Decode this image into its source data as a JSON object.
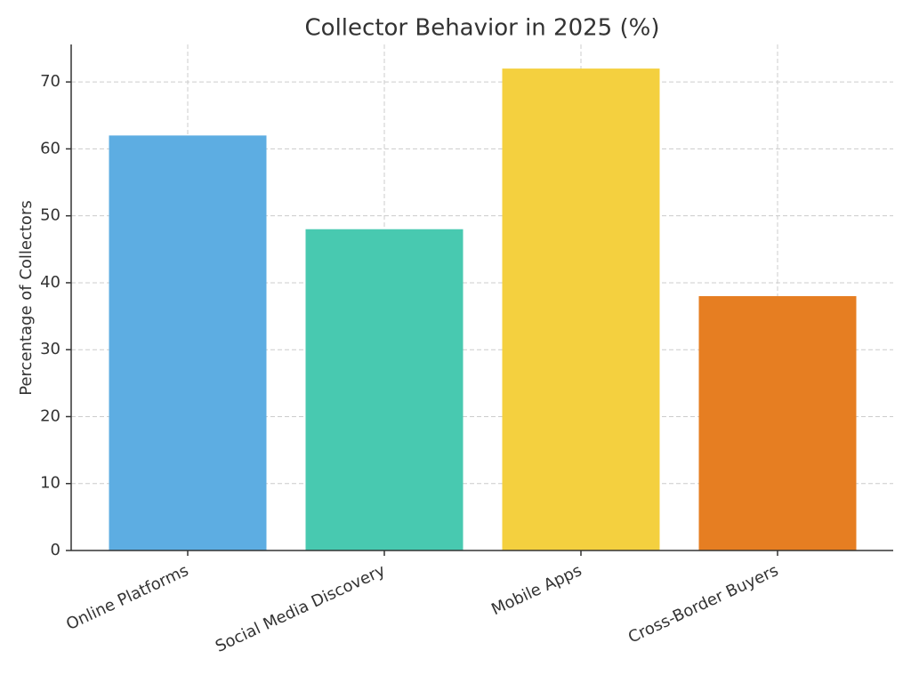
{
  "chart_data": {
    "type": "bar",
    "title": "Collector Behavior in 2025 (%)",
    "y_label": "Percentage of Collectors",
    "categories": [
      "Online Platforms",
      "Social Media Discovery",
      "Mobile Apps",
      "Cross-Border Buyers"
    ],
    "values": [
      62,
      48,
      72,
      38
    ],
    "colors": [
      "#5dade2",
      "#48c9b0",
      "#f4d03f",
      "#e67e22"
    ],
    "ylim": [
      0,
      75.6
    ],
    "yticks": [
      0,
      10,
      20,
      30,
      40,
      50,
      60,
      70
    ],
    "grid": true
  }
}
